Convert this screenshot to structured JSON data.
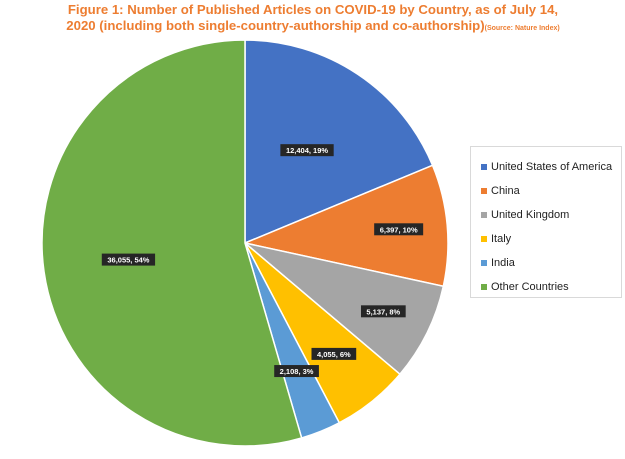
{
  "chart_data": {
    "type": "pie",
    "title": "Figure 1: Number of Published Articles on COVID-19 by Country, as of July 14, 2020 (including both single-country-authorship and co-authorship)",
    "source_note": "(Source: Nature Index)",
    "slices": [
      {
        "name": "United States of America",
        "value": 12404,
        "percent": "19%",
        "label": "12,404, 19%",
        "color": "#4472c4"
      },
      {
        "name": "China",
        "value": 6397,
        "percent": "10%",
        "label": "6,397, 10%",
        "color": "#ed7d31"
      },
      {
        "name": "United Kingdom",
        "value": 5137,
        "percent": "8%",
        "label": "5,137, 8%",
        "color": "#a5a5a5"
      },
      {
        "name": "Italy",
        "value": 4055,
        "percent": "6%",
        "label": "4,055, 6%",
        "color": "#ffc000"
      },
      {
        "name": "India",
        "value": 2108,
        "percent": "3%",
        "label": "2,108, 3%",
        "color": "#5b9bd5"
      },
      {
        "name": "Other Countries",
        "value": 36055,
        "percent": "54%",
        "label": "36,055, 54%",
        "color": "#70ad47"
      }
    ],
    "legend_position": "right"
  }
}
